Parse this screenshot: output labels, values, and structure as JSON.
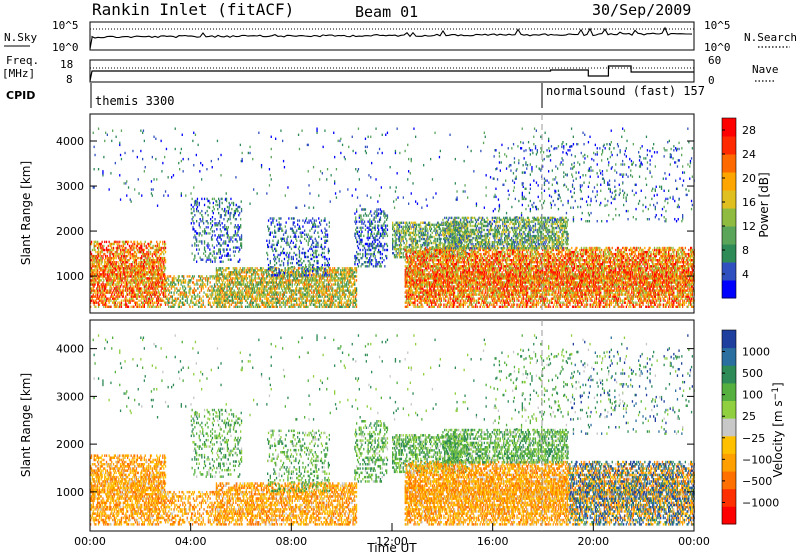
{
  "header": {
    "title": "Rankin Inlet (fitACF)",
    "beam": "Beam 01",
    "date": "30/Sep/2009"
  },
  "top_panels": {
    "nsky_label": "N.Sky",
    "nsky_ticks": [
      "10^5",
      "10^0"
    ],
    "nsearch_label": "N.Search",
    "nsearch_ticks": [
      "10^5",
      "10^0"
    ],
    "freq_label_1": "Freq.",
    "freq_label_2": "[MHz]",
    "freq_ticks": [
      "18",
      "8"
    ],
    "nave_label": "Nave",
    "nave_ticks": [
      "60",
      "0"
    ],
    "cpid_label": "CPID",
    "cpid_modes": [
      {
        "name": "themis 3300",
        "start_hour": 0
      },
      {
        "name": "normalsound (fast) 157",
        "start_hour": 18
      }
    ]
  },
  "chart_data": [
    {
      "type": "heatmap",
      "ylabel": "Slant Range [km]",
      "x_range_hours": [
        0,
        24
      ],
      "ylim": [
        180,
        4600
      ],
      "y_ticks": [
        1000,
        2000,
        3000,
        4000
      ],
      "colorbar": {
        "label": "Power [dB]",
        "ticks": [
          4,
          8,
          12,
          16,
          20,
          24,
          28
        ],
        "range": [
          0,
          30
        ],
        "colors": [
          "#0000ff",
          "#3050c0",
          "#2e8b57",
          "#5aa55a",
          "#8fbc40",
          "#e0c020",
          "#ffa500",
          "#ff6a00",
          "#ff2a00",
          "#ff0000"
        ]
      }
    },
    {
      "type": "heatmap",
      "ylabel": "Slant Range [km]",
      "xlabel": "Time UT",
      "x_range_hours": [
        0,
        24
      ],
      "x_ticks": [
        "00:00",
        "04:00",
        "08:00",
        "12:00",
        "16:00",
        "20:00",
        "00:00"
      ],
      "ylim": [
        180,
        4600
      ],
      "y_ticks": [
        1000,
        2000,
        3000,
        4000
      ],
      "colorbar": {
        "label": "Velocity [m s^-1]",
        "ticks": [
          "1000",
          "500",
          "100",
          "25",
          "−25",
          "−100",
          "−500",
          "−1000"
        ],
        "colors": [
          "#1f3f9f",
          "#2a6fa0",
          "#2e8b57",
          "#55b040",
          "#90d040",
          "#c8c8c8",
          "#ffc000",
          "#ffa000",
          "#ff7000",
          "#ff3000",
          "#ff0000"
        ]
      }
    }
  ]
}
